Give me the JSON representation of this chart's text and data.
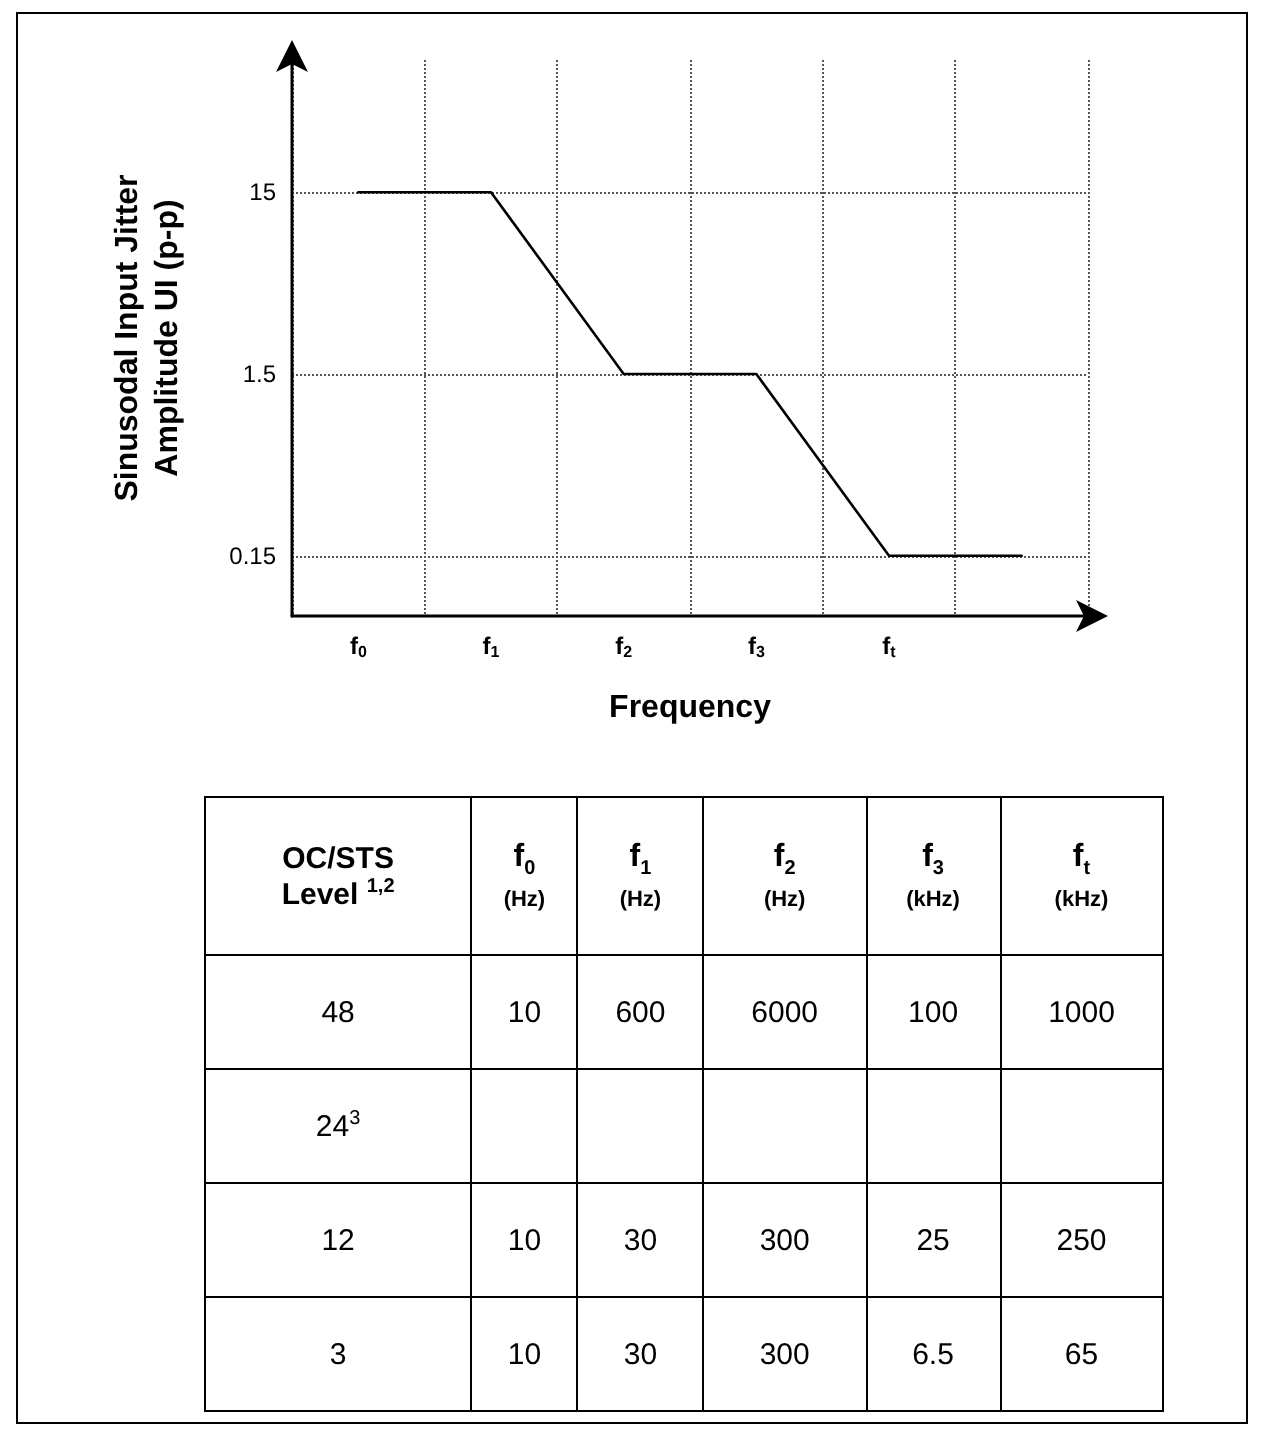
{
  "chart_data": [
    {
      "type": "line",
      "xlabel": "Frequency",
      "ylabel": "Sinusodal Input Jitter\nAmplitude UI (p-p)",
      "categories": [
        "f$_{0}$",
        "f$_{1}$",
        "f$_{2}$",
        "f$_{3}$",
        "f$_{t}$",
        null
      ],
      "series": [
        {
          "color": "#000000",
          "values": [
            15,
            15,
            1.5,
            1.5,
            0.15,
            0.15
          ]
        }
      ],
      "log": "y",
      "ylim": [
        0.07,
        80
      ],
      "yticks": [
        0.15,
        1.5,
        15
      ],
      "grid": true,
      "marker": "none",
      "line_style": "solid"
    },
    {
      "type": "other",
      "categories": [
        "OC/STS\nLevel $^{1,2}$",
        "f$_{0}$\n(Hz)",
        "f$_{1}$\n(Hz)",
        "f$_{2}$\n(Hz)",
        "f$_{3}$\n(kHz)",
        "f$_{t}$\n(kHz)"
      ],
      "y_categories": [
        "48",
        "24$^{3}$",
        "12",
        "3"
      ],
      "cell_labels": [
        [
          "10",
          "600",
          "6000",
          "100",
          "1000"
        ],
        [
          null,
          null,
          null,
          null,
          null
        ],
        [
          "10",
          "30",
          "300",
          "25",
          "250"
        ],
        [
          "10",
          "30",
          "300",
          "6.5",
          "65"
        ]
      ]
    }
  ]
}
